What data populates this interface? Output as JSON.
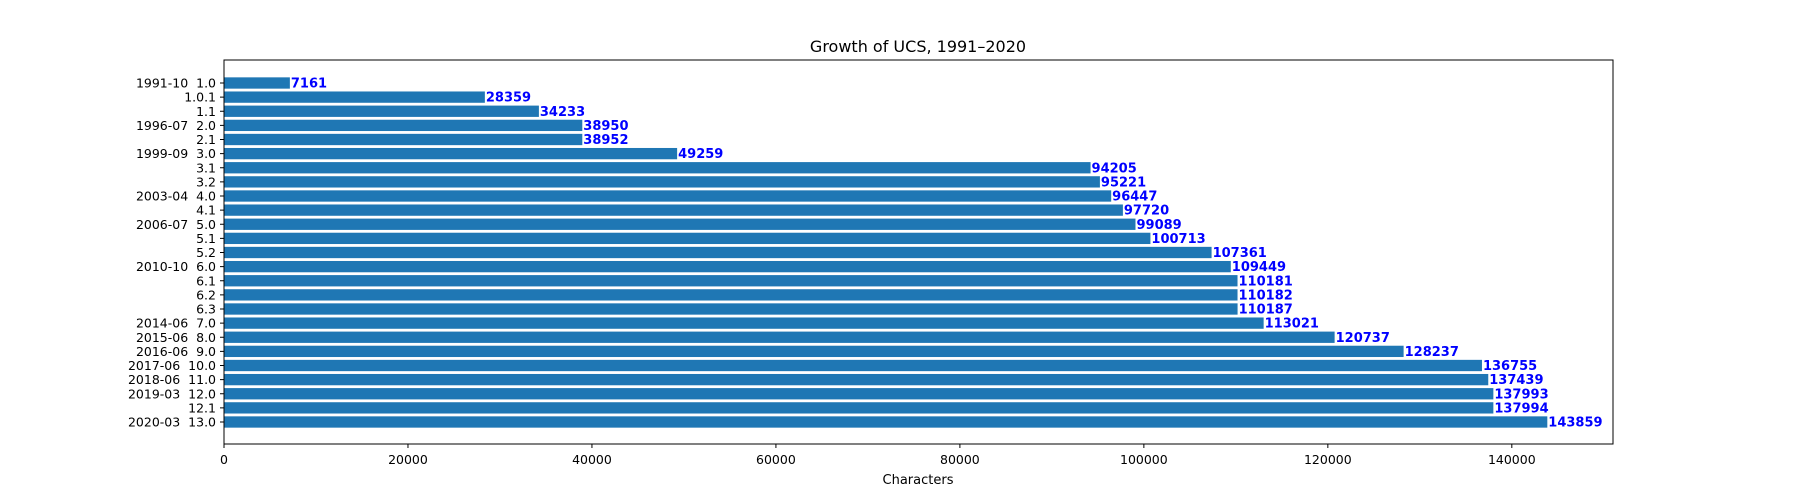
{
  "chart_data": {
    "type": "bar",
    "orientation": "horizontal",
    "title": "Growth of UCS, 1991–2020",
    "xlabel": "Characters",
    "ylabel": "",
    "xlim": [
      0,
      151000
    ],
    "xticks": [
      0,
      20000,
      40000,
      60000,
      80000,
      100000,
      120000,
      140000
    ],
    "grid": false,
    "legend": "none",
    "bar_color": "#1f77b4",
    "label_color": "#0000ff",
    "categories": [
      "1991-10  1.0",
      "1.0.1",
      "1.1",
      "1996-07  2.0",
      "2.1",
      "1999-09  3.0",
      "3.1",
      "3.2",
      "2003-04  4.0",
      "4.1",
      "2006-07  5.0",
      "5.1",
      "5.2",
      "2010-10  6.0",
      "6.1",
      "6.2",
      "6.3",
      "2014-06  7.0",
      "2015-06  8.0",
      "2016-06  9.0",
      "2017-06  10.0",
      "2018-06  11.0",
      "2019-03  12.0",
      "12.1",
      "2020-03  13.0"
    ],
    "values": [
      7161,
      28359,
      34233,
      38950,
      38952,
      49259,
      94205,
      95221,
      96447,
      97720,
      99089,
      100713,
      107361,
      109449,
      110181,
      110182,
      110187,
      113021,
      120737,
      128237,
      136755,
      137439,
      137993,
      137994,
      143859
    ]
  }
}
